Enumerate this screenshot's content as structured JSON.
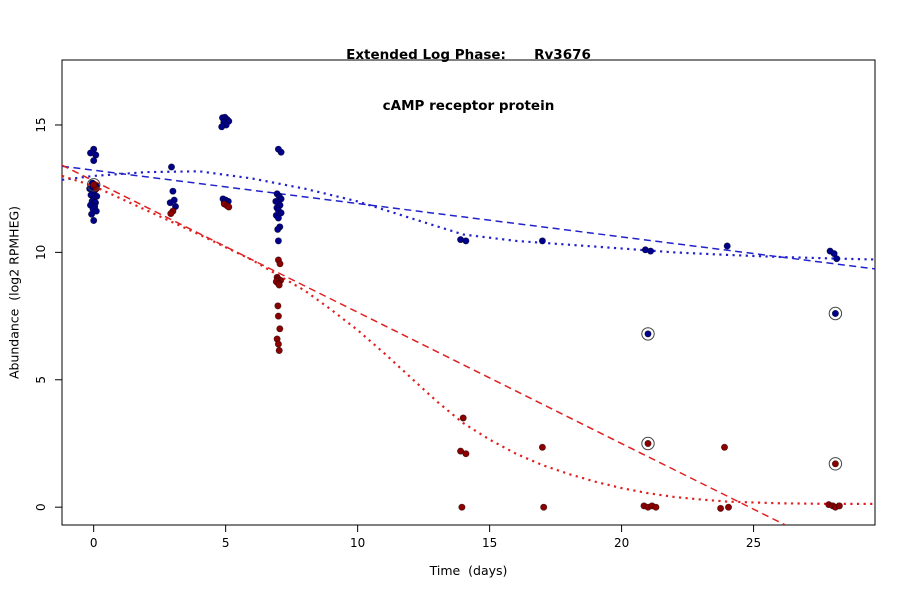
{
  "chart_data": {
    "type": "scatter",
    "title": "Extended Log Phase:      Rv3676",
    "subtitle": "cAMP receptor protein",
    "xlabel": "Time  (days)",
    "ylabel": "Abundance  (log2 RPMHEG)",
    "xlim": [
      -1.2,
      29.6
    ],
    "ylim": [
      -0.7,
      17.55
    ],
    "xticks": [
      0,
      5,
      10,
      15,
      20,
      25
    ],
    "yticks": [
      0,
      5,
      10,
      15
    ],
    "grid": false,
    "legend": "none",
    "series": [
      {
        "name": "blue",
        "point_color": "#00008B",
        "line_color": "#2222CC",
        "points": [
          [
            0,
            14.05
          ],
          [
            -0.12,
            13.9
          ],
          [
            0.08,
            13.82
          ],
          [
            0,
            13.6
          ],
          [
            -0.05,
            12.72
          ],
          [
            0.1,
            12.6
          ],
          [
            -0.15,
            12.5
          ],
          [
            0.05,
            12.45
          ],
          [
            0,
            12.35
          ],
          [
            -0.1,
            12.25
          ],
          [
            0.12,
            12.2
          ],
          [
            0,
            12.1
          ],
          [
            -0.06,
            12.0
          ],
          [
            0.07,
            11.95
          ],
          [
            -0.12,
            11.85
          ],
          [
            0.04,
            11.8
          ],
          [
            -0.02,
            11.7
          ],
          [
            0.1,
            11.62
          ],
          [
            -0.08,
            11.5
          ],
          [
            0,
            11.25
          ],
          [
            2.95,
            13.35
          ],
          [
            3.0,
            12.4
          ],
          [
            3.05,
            12.05
          ],
          [
            2.9,
            11.95
          ],
          [
            3.1,
            11.8
          ],
          [
            4.88,
            15.28
          ],
          [
            4.97,
            15.3
          ],
          [
            5.05,
            15.22
          ],
          [
            5.12,
            15.15
          ],
          [
            4.93,
            15.1
          ],
          [
            5.02,
            15.0
          ],
          [
            4.85,
            14.93
          ],
          [
            4.9,
            12.1
          ],
          [
            5.0,
            12.05
          ],
          [
            5.1,
            12.0
          ],
          [
            4.95,
            11.95
          ],
          [
            7.0,
            14.05
          ],
          [
            7.1,
            13.93
          ],
          [
            6.95,
            12.3
          ],
          [
            7.03,
            12.2
          ],
          [
            7.1,
            12.1
          ],
          [
            6.9,
            12.0
          ],
          [
            7.0,
            11.95
          ],
          [
            7.06,
            11.85
          ],
          [
            6.94,
            11.75
          ],
          [
            7.0,
            11.65
          ],
          [
            7.1,
            11.55
          ],
          [
            6.92,
            11.45
          ],
          [
            7.0,
            11.35
          ],
          [
            7.05,
            11.0
          ],
          [
            6.97,
            10.9
          ],
          [
            7.0,
            10.45
          ],
          [
            13.9,
            10.5
          ],
          [
            14.1,
            10.45
          ],
          [
            17.0,
            10.45
          ],
          [
            20.9,
            10.1
          ],
          [
            21.1,
            10.05
          ],
          [
            24.0,
            10.25
          ],
          [
            27.9,
            10.05
          ],
          [
            28.05,
            9.95
          ],
          [
            28.15,
            9.75
          ]
        ]
      },
      {
        "name": "red",
        "point_color": "#8B0000",
        "line_color": "#E02020",
        "points": [
          [
            0.1,
            12.5
          ],
          [
            3.0,
            11.62
          ],
          [
            2.92,
            11.52
          ],
          [
            4.95,
            11.9
          ],
          [
            5.05,
            11.83
          ],
          [
            5.12,
            11.78
          ],
          [
            7.0,
            9.7
          ],
          [
            7.06,
            9.55
          ],
          [
            6.95,
            9.02
          ],
          [
            7.0,
            8.95
          ],
          [
            7.08,
            8.9
          ],
          [
            6.92,
            8.85
          ],
          [
            7.0,
            8.78
          ],
          [
            7.03,
            8.72
          ],
          [
            6.98,
            7.9
          ],
          [
            7.0,
            7.5
          ],
          [
            7.05,
            7.0
          ],
          [
            6.95,
            6.6
          ],
          [
            7.0,
            6.4
          ],
          [
            7.03,
            6.15
          ],
          [
            14.0,
            3.5
          ],
          [
            13.9,
            2.2
          ],
          [
            14.1,
            2.1
          ],
          [
            13.95,
            0.0
          ],
          [
            17.0,
            2.35
          ],
          [
            17.05,
            0.0
          ],
          [
            20.85,
            0.05
          ],
          [
            21.0,
            0.0
          ],
          [
            21.15,
            0.05
          ],
          [
            21.3,
            0.0
          ],
          [
            23.9,
            2.35
          ],
          [
            23.75,
            -0.05
          ],
          [
            24.05,
            0.0
          ],
          [
            27.85,
            0.1
          ],
          [
            28.0,
            0.05
          ],
          [
            28.1,
            0.0
          ],
          [
            28.25,
            0.05
          ]
        ]
      }
    ],
    "fits": [
      {
        "series": "blue",
        "style": "dashed",
        "color": "#2222CC",
        "points": [
          [
            -1.2,
            13.38
          ],
          [
            29.6,
            9.35
          ]
        ]
      },
      {
        "series": "blue",
        "style": "dotted",
        "color": "#2222CC",
        "points": [
          [
            -1.2,
            12.85
          ],
          [
            0,
            13.0
          ],
          [
            2,
            13.15
          ],
          [
            4,
            13.18
          ],
          [
            6,
            12.9
          ],
          [
            8,
            12.5
          ],
          [
            10,
            12.0
          ],
          [
            12,
            11.35
          ],
          [
            14,
            10.7
          ],
          [
            16,
            10.45
          ],
          [
            18,
            10.3
          ],
          [
            20,
            10.15
          ],
          [
            22,
            10.0
          ],
          [
            24,
            9.9
          ],
          [
            26,
            9.82
          ],
          [
            28,
            9.76
          ],
          [
            29.6,
            9.72
          ]
        ]
      },
      {
        "series": "red",
        "style": "dashed",
        "color": "#E02020",
        "points": [
          [
            -1.2,
            13.42
          ],
          [
            26.2,
            -0.7
          ]
        ]
      },
      {
        "series": "red",
        "style": "dotted",
        "color": "#E02020",
        "points": [
          [
            -1.2,
            13.0
          ],
          [
            0,
            12.6
          ],
          [
            2,
            11.65
          ],
          [
            4,
            10.7
          ],
          [
            6,
            9.7
          ],
          [
            7,
            9.1
          ],
          [
            8,
            8.5
          ],
          [
            9,
            7.75
          ],
          [
            10,
            6.95
          ],
          [
            11,
            6.05
          ],
          [
            12,
            5.1
          ],
          [
            13,
            4.15
          ],
          [
            14,
            3.3
          ],
          [
            15,
            2.65
          ],
          [
            16,
            2.1
          ],
          [
            17,
            1.65
          ],
          [
            18,
            1.3
          ],
          [
            19,
            1.0
          ],
          [
            20,
            0.75
          ],
          [
            21,
            0.55
          ],
          [
            22,
            0.4
          ],
          [
            23,
            0.3
          ],
          [
            24,
            0.22
          ],
          [
            26,
            0.15
          ],
          [
            28,
            0.13
          ],
          [
            29.6,
            0.13
          ]
        ]
      }
    ],
    "flagged_points": [
      {
        "x": 0.0,
        "y": 12.65,
        "series": "red"
      },
      {
        "x": 21.0,
        "y": 6.8,
        "series": "blue"
      },
      {
        "x": 28.1,
        "y": 7.6,
        "series": "blue"
      },
      {
        "x": 21.0,
        "y": 2.5,
        "series": "red"
      },
      {
        "x": 28.1,
        "y": 1.7,
        "series": "red"
      }
    ]
  }
}
